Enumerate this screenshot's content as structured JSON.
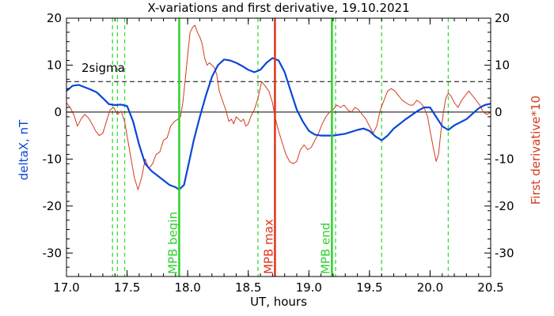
{
  "chart_data": {
    "type": "line",
    "title": "X-variations and first derivative, 19.10.2021",
    "xlabel": "UT, hours",
    "ylabel_left": "deltaX, nT",
    "ylabel_right": "First derivative*10",
    "xlim": [
      17.0,
      20.5
    ],
    "ylim": [
      -35,
      20
    ],
    "x_ticks": [
      17.0,
      17.5,
      18.0,
      18.5,
      19.0,
      19.5,
      20.0,
      20.5
    ],
    "x_tick_labels": [
      "17.0",
      "17.5",
      "18.0",
      "18.5",
      "19.0",
      "19.5",
      "20.0",
      "20.5"
    ],
    "y_ticks": [
      -30,
      -20,
      -10,
      0,
      10,
      20
    ],
    "y_tick_labels": [
      "-30",
      "-20",
      "-10",
      "0",
      "10",
      "20"
    ],
    "grid": false,
    "threshold": {
      "label": "2sigma",
      "y": 6.5,
      "style": "dashed",
      "color": "#000000"
    },
    "zero_line": {
      "y": 0,
      "color": "#000000"
    },
    "series": [
      {
        "name": "deltaX, nT",
        "color": "#0a46d8",
        "points": [
          [
            17.0,
            4.5
          ],
          [
            17.05,
            5.6
          ],
          [
            17.1,
            5.8
          ],
          [
            17.15,
            5.3
          ],
          [
            17.2,
            4.8
          ],
          [
            17.25,
            4.2
          ],
          [
            17.3,
            3.0
          ],
          [
            17.35,
            1.7
          ],
          [
            17.4,
            1.5
          ],
          [
            17.45,
            1.6
          ],
          [
            17.5,
            1.3
          ],
          [
            17.55,
            -2.0
          ],
          [
            17.6,
            -7.0
          ],
          [
            17.65,
            -11.0
          ],
          [
            17.7,
            -12.5
          ],
          [
            17.75,
            -13.5
          ],
          [
            17.8,
            -14.5
          ],
          [
            17.85,
            -15.5
          ],
          [
            17.9,
            -16.0
          ],
          [
            17.93,
            -16.5
          ],
          [
            17.97,
            -15.5
          ],
          [
            18.0,
            -12.0
          ],
          [
            18.05,
            -6.0
          ],
          [
            18.1,
            -1.0
          ],
          [
            18.15,
            3.5
          ],
          [
            18.2,
            7.5
          ],
          [
            18.25,
            10.0
          ],
          [
            18.3,
            11.2
          ],
          [
            18.35,
            11.0
          ],
          [
            18.4,
            10.5
          ],
          [
            18.45,
            9.8
          ],
          [
            18.5,
            9.0
          ],
          [
            18.55,
            8.5
          ],
          [
            18.6,
            9.0
          ],
          [
            18.65,
            10.5
          ],
          [
            18.7,
            11.5
          ],
          [
            18.75,
            11.0
          ],
          [
            18.8,
            8.5
          ],
          [
            18.85,
            4.5
          ],
          [
            18.9,
            0.5
          ],
          [
            18.95,
            -2.0
          ],
          [
            19.0,
            -4.0
          ],
          [
            19.05,
            -4.8
          ],
          [
            19.1,
            -5.0
          ],
          [
            19.2,
            -5.0
          ],
          [
            19.3,
            -4.6
          ],
          [
            19.4,
            -3.8
          ],
          [
            19.45,
            -3.5
          ],
          [
            19.5,
            -4.0
          ],
          [
            19.55,
            -5.2
          ],
          [
            19.6,
            -6.0
          ],
          [
            19.65,
            -5.0
          ],
          [
            19.7,
            -3.5
          ],
          [
            19.8,
            -1.5
          ],
          [
            19.9,
            0.3
          ],
          [
            19.95,
            1.0
          ],
          [
            20.0,
            1.0
          ],
          [
            20.05,
            -1.0
          ],
          [
            20.1,
            -3.0
          ],
          [
            20.15,
            -3.8
          ],
          [
            20.2,
            -2.8
          ],
          [
            20.3,
            -1.5
          ],
          [
            20.4,
            0.8
          ],
          [
            20.45,
            1.5
          ],
          [
            20.5,
            1.8
          ]
        ]
      },
      {
        "name": "First derivative*10",
        "color": "#d43a1e",
        "points": [
          [
            17.0,
            2.0
          ],
          [
            17.03,
            1.0
          ],
          [
            17.06,
            -0.5
          ],
          [
            17.09,
            -3.0
          ],
          [
            17.12,
            -1.5
          ],
          [
            17.15,
            -0.5
          ],
          [
            17.18,
            -1.2
          ],
          [
            17.21,
            -2.5
          ],
          [
            17.24,
            -4.0
          ],
          [
            17.27,
            -5.0
          ],
          [
            17.3,
            -4.5
          ],
          [
            17.33,
            -2.0
          ],
          [
            17.36,
            0.5
          ],
          [
            17.39,
            1.0
          ],
          [
            17.42,
            -0.5
          ],
          [
            17.45,
            0.2
          ],
          [
            17.48,
            -2.0
          ],
          [
            17.52,
            -8.0
          ],
          [
            17.56,
            -14.0
          ],
          [
            17.59,
            -16.5
          ],
          [
            17.62,
            -14.0
          ],
          [
            17.65,
            -10.0
          ],
          [
            17.68,
            -12.0
          ],
          [
            17.71,
            -11.0
          ],
          [
            17.74,
            -9.0
          ],
          [
            17.77,
            -8.5
          ],
          [
            17.8,
            -6.0
          ],
          [
            17.83,
            -5.5
          ],
          [
            17.86,
            -3.0
          ],
          [
            17.89,
            -2.0
          ],
          [
            17.92,
            -1.5
          ],
          [
            17.94,
            -1.0
          ],
          [
            17.96,
            2.0
          ],
          [
            17.98,
            7.0
          ],
          [
            18.0,
            12.0
          ],
          [
            18.02,
            17.0
          ],
          [
            18.04,
            18.0
          ],
          [
            18.06,
            18.5
          ],
          [
            18.08,
            17.0
          ],
          [
            18.1,
            16.0
          ],
          [
            18.12,
            14.5
          ],
          [
            18.14,
            11.5
          ],
          [
            18.16,
            10.0
          ],
          [
            18.18,
            10.5
          ],
          [
            18.2,
            10.0
          ],
          [
            18.22,
            9.5
          ],
          [
            18.24,
            8.0
          ],
          [
            18.26,
            4.5
          ],
          [
            18.28,
            3.0
          ],
          [
            18.3,
            1.5
          ],
          [
            18.32,
            0.0
          ],
          [
            18.34,
            -2.0
          ],
          [
            18.36,
            -1.5
          ],
          [
            18.38,
            -2.5
          ],
          [
            18.4,
            -1.0
          ],
          [
            18.42,
            -1.5
          ],
          [
            18.44,
            -2.0
          ],
          [
            18.46,
            -1.5
          ],
          [
            18.48,
            -3.0
          ],
          [
            18.5,
            -2.5
          ],
          [
            18.52,
            -1.0
          ],
          [
            18.55,
            0.5
          ],
          [
            18.58,
            3.0
          ],
          [
            18.61,
            6.5
          ],
          [
            18.64,
            5.5
          ],
          [
            18.67,
            4.5
          ],
          [
            18.7,
            2.0
          ],
          [
            18.72,
            -1.0
          ],
          [
            18.75,
            -4.0
          ],
          [
            18.78,
            -6.5
          ],
          [
            18.81,
            -9.0
          ],
          [
            18.84,
            -10.5
          ],
          [
            18.87,
            -11.0
          ],
          [
            18.9,
            -10.5
          ],
          [
            18.93,
            -8.0
          ],
          [
            18.96,
            -7.0
          ],
          [
            18.99,
            -8.0
          ],
          [
            19.02,
            -7.5
          ],
          [
            19.05,
            -6.0
          ],
          [
            19.08,
            -4.5
          ],
          [
            19.11,
            -2.5
          ],
          [
            19.14,
            -1.0
          ],
          [
            19.17,
            0.0
          ],
          [
            19.2,
            0.5
          ],
          [
            19.23,
            1.5
          ],
          [
            19.26,
            1.0
          ],
          [
            19.29,
            1.5
          ],
          [
            19.32,
            0.5
          ],
          [
            19.35,
            0.0
          ],
          [
            19.38,
            1.0
          ],
          [
            19.41,
            0.5
          ],
          [
            19.44,
            -0.5
          ],
          [
            19.47,
            -1.5
          ],
          [
            19.5,
            -3.0
          ],
          [
            19.53,
            -4.5
          ],
          [
            19.56,
            -3.0
          ],
          [
            19.59,
            0.5
          ],
          [
            19.62,
            2.5
          ],
          [
            19.65,
            4.5
          ],
          [
            19.68,
            5.0
          ],
          [
            19.71,
            4.5
          ],
          [
            19.74,
            3.5
          ],
          [
            19.77,
            2.5
          ],
          [
            19.8,
            2.0
          ],
          [
            19.83,
            1.5
          ],
          [
            19.86,
            1.5
          ],
          [
            19.89,
            2.5
          ],
          [
            19.92,
            2.0
          ],
          [
            19.95,
            1.0
          ],
          [
            19.98,
            -1.0
          ],
          [
            20.0,
            -4.0
          ],
          [
            20.03,
            -8.0
          ],
          [
            20.05,
            -10.5
          ],
          [
            20.07,
            -9.0
          ],
          [
            20.09,
            -4.0
          ],
          [
            20.11,
            0.0
          ],
          [
            20.13,
            3.0
          ],
          [
            20.15,
            4.0
          ],
          [
            20.17,
            3.5
          ],
          [
            20.2,
            2.0
          ],
          [
            20.23,
            1.0
          ],
          [
            20.26,
            2.5
          ],
          [
            20.29,
            3.5
          ],
          [
            20.32,
            4.5
          ],
          [
            20.35,
            3.5
          ],
          [
            20.38,
            2.5
          ],
          [
            20.41,
            1.5
          ],
          [
            20.44,
            0.0
          ],
          [
            20.47,
            -0.5
          ],
          [
            20.5,
            0.0
          ]
        ]
      }
    ],
    "vlines_dashed": {
      "color": "#33dd33",
      "x": [
        17.38,
        17.42,
        17.48,
        18.58,
        19.22,
        19.6,
        20.15
      ]
    },
    "markers": [
      {
        "label": "MPB begin",
        "x": 17.93,
        "color": "#2ed02e"
      },
      {
        "label": "MPB max",
        "x": 18.72,
        "color": "#e0351c"
      },
      {
        "label": "MPB end",
        "x": 19.19,
        "color": "#2ed02e"
      }
    ]
  }
}
